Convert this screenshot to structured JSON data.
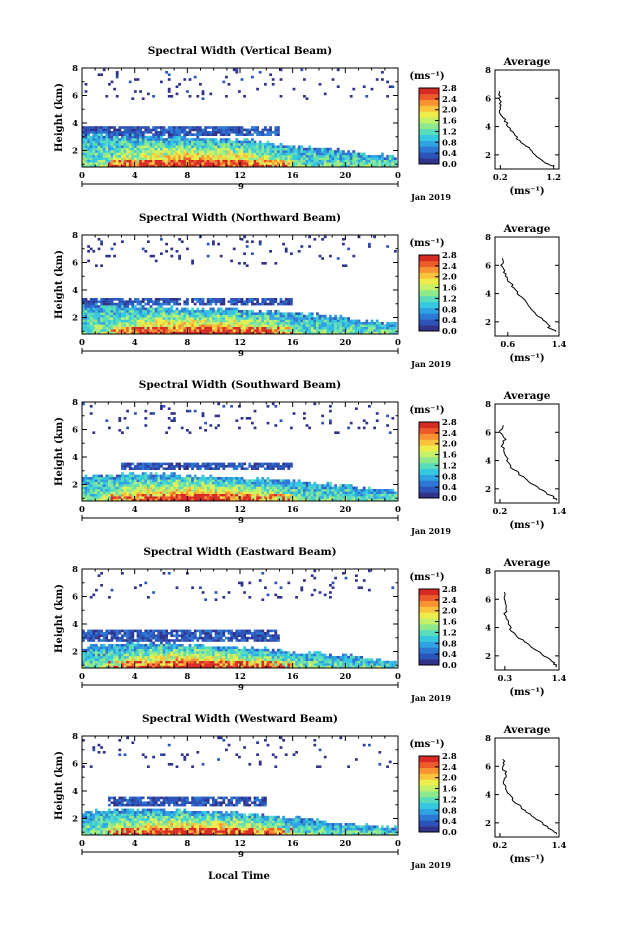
{
  "figure": {
    "date_label": "Jan 2019",
    "day_label": "9",
    "x_axis_label": "Local Time",
    "y_axis_label": "Height (km)",
    "colorbar_unit": "(ms⁻¹)",
    "profile_title": "Average",
    "profile_unit": "(ms⁻¹)",
    "colormap": [
      "#31338a",
      "#2c53b8",
      "#2d78d4",
      "#2fa2e2",
      "#35c8df",
      "#58dcbc",
      "#8ee88c",
      "#c4f06a",
      "#eded4c",
      "#f9c43c",
      "#f89333",
      "#ee5b2b",
      "#d82a24"
    ]
  },
  "chart_data": [
    {
      "type": "heatmap",
      "title": "Spectral Width (Vertical Beam)",
      "x_ticks": [
        "0",
        "4",
        "8",
        "12",
        "16",
        "20",
        "0"
      ],
      "xlim": [
        0,
        24
      ],
      "y_ticks": [
        "2",
        "4",
        "6",
        "8"
      ],
      "ylim": [
        0.8,
        8
      ],
      "colorbar_ticks": [
        "0.0",
        "0.4",
        "0.8",
        "1.2",
        "1.6",
        "2.0",
        "2.4",
        "2.8"
      ],
      "colorbar_range": [
        0,
        2.8
      ],
      "boundary_layer_top_km": [
        3.2,
        3.1,
        3.1,
        3.0,
        3.0,
        2.9,
        2.8,
        2.6,
        2.4,
        2.2,
        2.0,
        1.8,
        1.6
      ],
      "cloud_layer": {
        "start_hr": 0,
        "end_hr": 15,
        "bottom_km": 3.0,
        "top_km": 3.7
      },
      "profile": {
        "xlim": [
          0.1,
          1.3
        ],
        "x_ticks": [
          "0.2",
          "1.2"
        ],
        "ylim": [
          1,
          8
        ],
        "y_ticks": [
          "2",
          "4",
          "6",
          "8"
        ],
        "height_km": [
          1.2,
          1.5,
          2.0,
          2.5,
          3.0,
          3.5,
          4.0,
          4.5,
          5.0,
          5.5,
          6.0,
          6.5
        ],
        "width_ms": [
          1.2,
          1.0,
          0.85,
          0.75,
          0.55,
          0.45,
          0.35,
          0.28,
          0.2,
          0.22,
          0.18,
          0.2
        ]
      }
    },
    {
      "type": "heatmap",
      "title": "Spectral Width (Northward Beam)",
      "x_ticks": [
        "0",
        "4",
        "8",
        "12",
        "16",
        "20",
        "0"
      ],
      "xlim": [
        0,
        24
      ],
      "y_ticks": [
        "2",
        "4",
        "6",
        "8"
      ],
      "ylim": [
        0.8,
        8
      ],
      "colorbar_ticks": [
        "0.0",
        "0.4",
        "0.8",
        "1.2",
        "1.6",
        "2.0",
        "2.4",
        "2.8"
      ],
      "colorbar_range": [
        0,
        2.8
      ],
      "boundary_layer_top_km": [
        3.0,
        2.9,
        2.9,
        2.8,
        2.7,
        2.6,
        2.6,
        2.5,
        2.4,
        2.2,
        2.0,
        1.8,
        1.6
      ],
      "cloud_layer": {
        "start_hr": 0,
        "end_hr": 16,
        "bottom_km": 2.9,
        "top_km": 3.5
      },
      "profile": {
        "xlim": [
          0.4,
          1.4
        ],
        "x_ticks": [
          "0.6",
          "1.4"
        ],
        "ylim": [
          1,
          8
        ],
        "y_ticks": [
          "2",
          "4",
          "6",
          "8"
        ],
        "height_km": [
          1.3,
          1.6,
          2.0,
          2.5,
          3.0,
          3.5,
          4.0,
          4.5,
          5.0,
          5.5,
          6.0,
          6.5
        ],
        "width_ms": [
          1.35,
          1.25,
          1.2,
          1.05,
          0.95,
          0.85,
          0.75,
          0.68,
          0.6,
          0.55,
          0.5,
          0.52
        ]
      }
    },
    {
      "type": "heatmap",
      "title": "Spectral Width (Southward Beam)",
      "x_ticks": [
        "0",
        "4",
        "8",
        "12",
        "16",
        "20",
        "0"
      ],
      "xlim": [
        0,
        24
      ],
      "y_ticks": [
        "2",
        "4",
        "6",
        "8"
      ],
      "ylim": [
        0.8,
        8
      ],
      "colorbar_ticks": [
        "0.0",
        "0.4",
        "0.8",
        "1.2",
        "1.6",
        "2.0",
        "2.4",
        "2.8"
      ],
      "colorbar_range": [
        0,
        2.8
      ],
      "boundary_layer_top_km": [
        2.6,
        2.7,
        2.8,
        2.8,
        2.7,
        2.6,
        2.5,
        2.4,
        2.3,
        2.1,
        1.9,
        1.7,
        1.5
      ],
      "cloud_layer": {
        "start_hr": 3,
        "end_hr": 16,
        "bottom_km": 3.0,
        "top_km": 3.6
      },
      "profile": {
        "xlim": [
          0.1,
          1.4
        ],
        "x_ticks": [
          "0.2",
          "1.4"
        ],
        "ylim": [
          1,
          8
        ],
        "y_ticks": [
          "2",
          "4",
          "6",
          "8"
        ],
        "height_km": [
          1.2,
          1.5,
          2.0,
          2.5,
          3.0,
          3.5,
          4.0,
          4.5,
          5.0,
          5.5,
          6.0,
          6.5
        ],
        "width_ms": [
          1.35,
          1.25,
          1.0,
          0.8,
          0.6,
          0.45,
          0.35,
          0.3,
          0.25,
          0.3,
          0.22,
          0.25
        ]
      }
    },
    {
      "type": "heatmap",
      "title": "Spectral Width (Eastward Beam)",
      "x_ticks": [
        "0",
        "4",
        "8",
        "12",
        "16",
        "20",
        "0"
      ],
      "xlim": [
        0,
        24
      ],
      "y_ticks": [
        "2",
        "4",
        "6",
        "8"
      ],
      "ylim": [
        0.8,
        8
      ],
      "colorbar_ticks": [
        "0.0",
        "0.4",
        "0.8",
        "1.2",
        "1.6",
        "2.0",
        "2.4",
        "2.8"
      ],
      "colorbar_range": [
        0,
        2.8
      ],
      "boundary_layer_top_km": [
        2.4,
        2.5,
        2.6,
        2.6,
        2.5,
        2.4,
        2.3,
        2.2,
        2.0,
        1.9,
        1.7,
        1.5,
        1.3
      ],
      "cloud_layer": {
        "start_hr": 0,
        "end_hr": 15,
        "bottom_km": 2.8,
        "top_km": 3.6
      },
      "profile": {
        "xlim": [
          0.1,
          1.4
        ],
        "x_ticks": [
          "0.3",
          "1.4"
        ],
        "ylim": [
          1,
          8
        ],
        "y_ticks": [
          "2",
          "4",
          "6",
          "8"
        ],
        "height_km": [
          1.2,
          1.5,
          2.0,
          2.5,
          3.0,
          3.5,
          4.0,
          4.5,
          5.0,
          5.5,
          6.0,
          6.5
        ],
        "width_ms": [
          1.35,
          1.3,
          1.1,
          0.9,
          0.7,
          0.5,
          0.4,
          0.35,
          0.3,
          0.35,
          0.28,
          0.3
        ]
      }
    },
    {
      "type": "heatmap",
      "title": "Spectral Width (Westward Beam)",
      "x_ticks": [
        "0",
        "4",
        "8",
        "12",
        "16",
        "20",
        "0"
      ],
      "xlim": [
        0,
        24
      ],
      "y_ticks": [
        "2",
        "4",
        "6",
        "8"
      ],
      "ylim": [
        0.8,
        8
      ],
      "colorbar_ticks": [
        "0.0",
        "0.4",
        "0.8",
        "1.2",
        "1.6",
        "2.0",
        "2.4",
        "2.8"
      ],
      "colorbar_range": [
        0,
        2.8
      ],
      "boundary_layer_top_km": [
        2.5,
        2.6,
        2.7,
        2.7,
        2.6,
        2.5,
        2.4,
        2.3,
        2.1,
        1.9,
        1.7,
        1.5,
        1.3
      ],
      "cloud_layer": {
        "start_hr": 2,
        "end_hr": 14,
        "bottom_km": 2.9,
        "top_km": 3.6
      },
      "profile": {
        "xlim": [
          0.1,
          1.4
        ],
        "x_ticks": [
          "0.2",
          "1.4"
        ],
        "ylim": [
          1,
          8
        ],
        "y_ticks": [
          "2",
          "4",
          "6",
          "8"
        ],
        "height_km": [
          1.2,
          1.5,
          2.0,
          2.5,
          3.0,
          3.5,
          4.0,
          4.5,
          5.0,
          5.5,
          6.0,
          6.5
        ],
        "width_ms": [
          1.35,
          1.25,
          1.05,
          0.85,
          0.65,
          0.5,
          0.38,
          0.33,
          0.28,
          0.32,
          0.25,
          0.28
        ]
      }
    }
  ]
}
